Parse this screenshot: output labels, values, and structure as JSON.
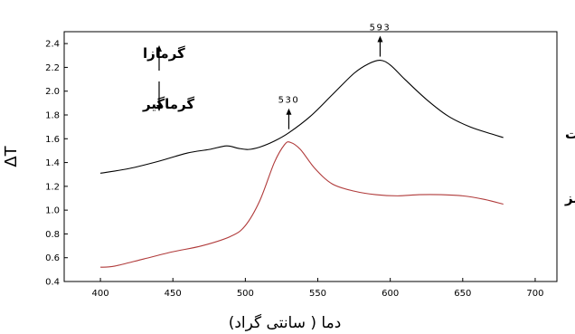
{
  "chart_data": {
    "type": "line",
    "xlabel": "دما ( سانتی گراد)",
    "ylabel": "ΔT",
    "xlim": [
      375,
      715
    ],
    "ylim": [
      0.4,
      2.5
    ],
    "x_ticks": [
      400,
      450,
      500,
      550,
      600,
      650,
      700
    ],
    "y_ticks": [
      0.4,
      0.6,
      0.8,
      1.0,
      1.2,
      1.4,
      1.6,
      1.8,
      2.0,
      2.2,
      2.4
    ],
    "grid": false,
    "series": [
      {
        "name": "دانه درشت",
        "color": "#000000",
        "x": [
          400,
          420,
          440,
          460,
          475,
          487,
          495,
          502,
          510,
          520,
          530,
          545,
          560,
          575,
          585,
          593,
          600,
          610,
          625,
          640,
          655,
          670,
          678
        ],
        "y": [
          1.31,
          1.35,
          1.41,
          1.48,
          1.51,
          1.54,
          1.52,
          1.51,
          1.53,
          1.58,
          1.65,
          1.79,
          1.97,
          2.15,
          2.23,
          2.26,
          2.22,
          2.1,
          1.93,
          1.79,
          1.7,
          1.64,
          1.61
        ]
      },
      {
        "name": "دانه ریز",
        "color": "#b03a3a",
        "x": [
          400,
          410,
          430,
          450,
          470,
          490,
          500,
          510,
          520,
          527,
          531,
          538,
          548,
          560,
          575,
          590,
          605,
          620,
          635,
          650,
          665,
          678
        ],
        "y": [
          0.52,
          0.53,
          0.59,
          0.65,
          0.7,
          0.78,
          0.87,
          1.08,
          1.4,
          1.55,
          1.57,
          1.51,
          1.35,
          1.22,
          1.16,
          1.13,
          1.12,
          1.13,
          1.13,
          1.12,
          1.09,
          1.05
        ]
      }
    ],
    "annotations": [
      {
        "text": "593",
        "x": 593,
        "y": 2.26
      },
      {
        "text": "530",
        "x": 530,
        "y": 1.65
      }
    ],
    "legend_text": {
      "exo": "گرمازا",
      "endo": "گرماگیر"
    }
  }
}
